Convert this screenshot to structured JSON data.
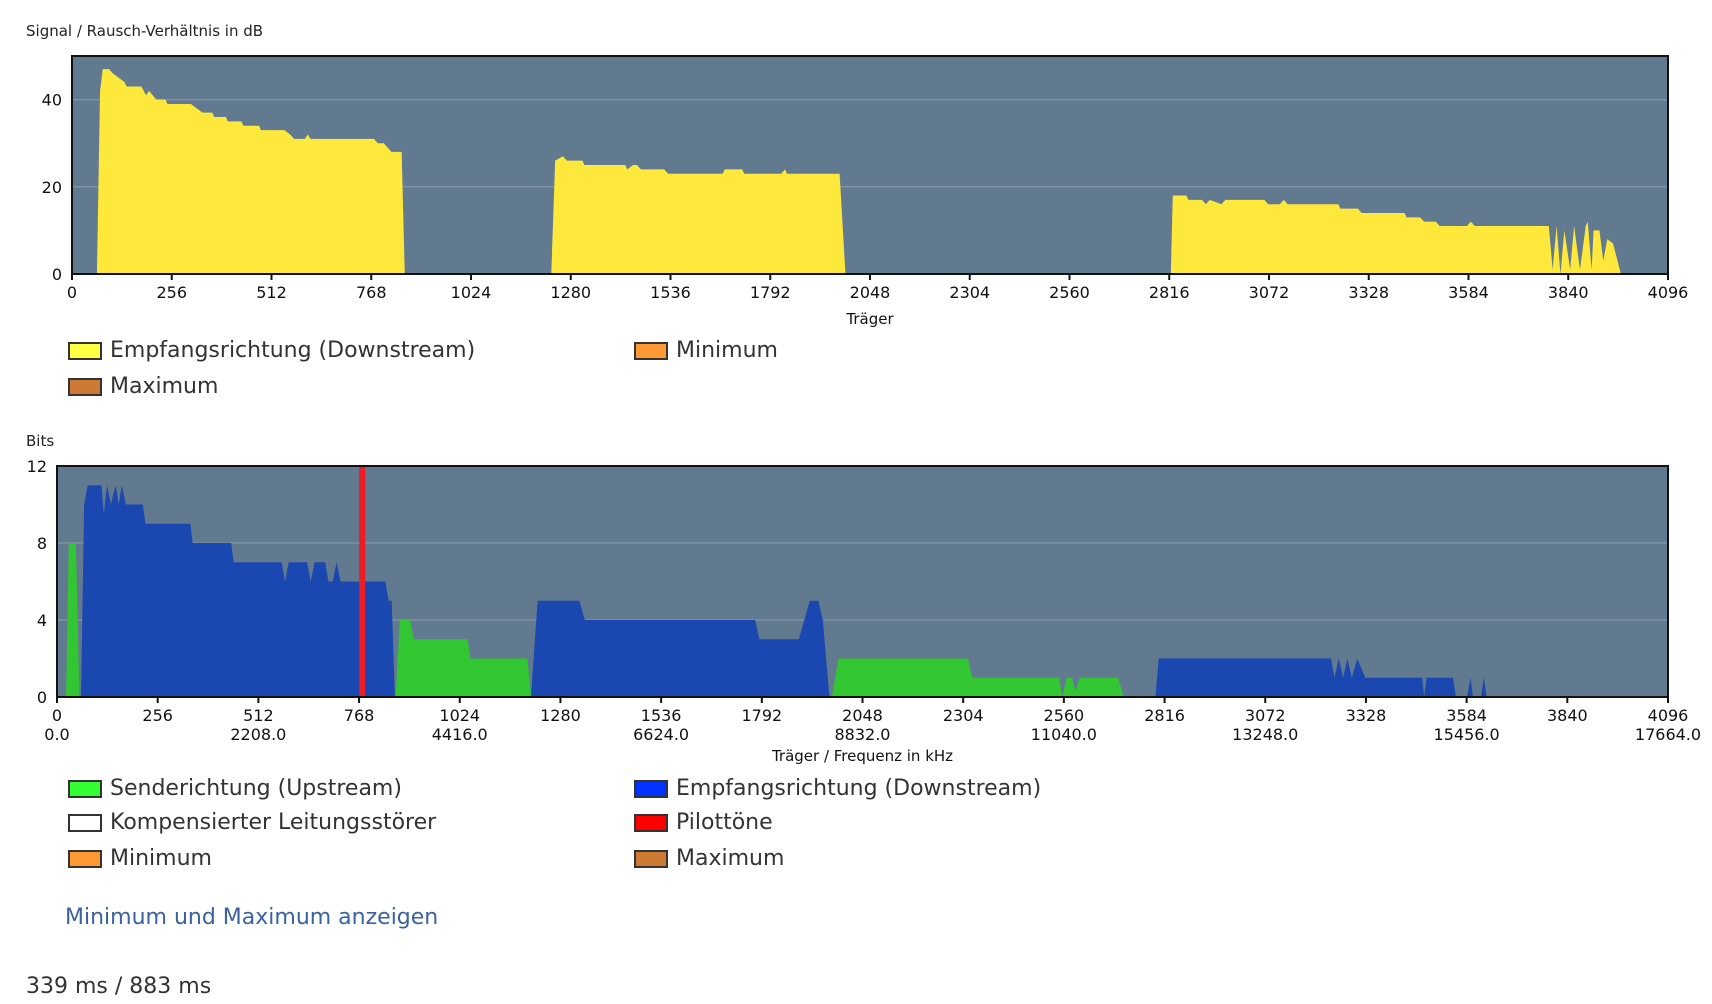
{
  "chart_data": [
    {
      "type": "area",
      "title": "Signal / Rausch-Verhältnis in dB",
      "ylabel": "Signal / Rausch-Verhältnis in dB",
      "xlabel": "Träger",
      "xlim": [
        0,
        4096
      ],
      "ylim": [
        0,
        50
      ],
      "xticks": [
        "0",
        "256",
        "512",
        "768",
        "1024",
        "1280",
        "1536",
        "1792",
        "2048",
        "2304",
        "2560",
        "2816",
        "3072",
        "3328",
        "3584",
        "3840",
        "4096"
      ],
      "yticks": [
        0,
        20,
        40
      ],
      "grid": true,
      "series": [
        {
          "name": "Empfangsrichtung (Downstream)",
          "color": "#ffe83c",
          "segments": [
            [
              [
                64,
                0
              ],
              [
                72,
                42
              ],
              [
                79,
                47
              ],
              [
                95,
                47
              ],
              [
                105,
                46
              ],
              [
                120,
                45
              ],
              [
                135,
                44
              ],
              [
                140,
                43
              ],
              [
                178,
                43
              ],
              [
                190,
                41
              ],
              [
                198,
                42
              ],
              [
                216,
                40
              ],
              [
                240,
                40
              ],
              [
                245,
                39
              ],
              [
                305,
                39
              ],
              [
                320,
                38
              ],
              [
                335,
                37
              ],
              [
                360,
                37
              ],
              [
                365,
                36
              ],
              [
                395,
                36
              ],
              [
                400,
                35
              ],
              [
                435,
                35
              ],
              [
                440,
                34
              ],
              [
                480,
                34
              ],
              [
                485,
                33
              ],
              [
                545,
                33
              ],
              [
                560,
                32
              ],
              [
                570,
                31
              ],
              [
                598,
                31
              ],
              [
                605,
                32
              ],
              [
                612,
                31
              ],
              [
                775,
                31
              ],
              [
                785,
                30
              ],
              [
                800,
                30
              ],
              [
                810,
                29
              ],
              [
                820,
                28
              ],
              [
                846,
                28
              ],
              [
                854,
                0
              ]
            ],
            [
              [
                1230,
                0
              ],
              [
                1240,
                26
              ],
              [
                1260,
                27
              ],
              [
                1270,
                26
              ],
              [
                1310,
                26
              ],
              [
                1315,
                25
              ],
              [
                1420,
                25
              ],
              [
                1425,
                24
              ],
              [
                1440,
                25
              ],
              [
                1450,
                25
              ],
              [
                1460,
                24
              ],
              [
                1520,
                24
              ],
              [
                1530,
                23
              ],
              [
                1670,
                23
              ],
              [
                1675,
                24
              ],
              [
                1720,
                24
              ],
              [
                1725,
                23
              ],
              [
                1820,
                23
              ],
              [
                1830,
                24
              ],
              [
                1835,
                23
              ],
              [
                1970,
                23
              ],
              [
                1985,
                0
              ]
            ],
            [
              [
                2820,
                0
              ],
              [
                2825,
                18
              ],
              [
                2860,
                18
              ],
              [
                2865,
                17
              ],
              [
                2900,
                17
              ],
              [
                2910,
                16
              ],
              [
                2920,
                17
              ],
              [
                2950,
                16
              ],
              [
                2960,
                17
              ],
              [
                3060,
                17
              ],
              [
                3070,
                16
              ],
              [
                3100,
                16
              ],
              [
                3110,
                17
              ],
              [
                3120,
                16
              ],
              [
                3250,
                16
              ],
              [
                3255,
                15
              ],
              [
                3300,
                15
              ],
              [
                3310,
                14
              ],
              [
                3420,
                14
              ],
              [
                3425,
                13
              ],
              [
                3460,
                13
              ],
              [
                3470,
                12
              ],
              [
                3500,
                12
              ],
              [
                3510,
                11
              ],
              [
                3580,
                11
              ],
              [
                3590,
                12
              ],
              [
                3600,
                11
              ],
              [
                3790,
                11
              ],
              [
                3800,
                1
              ],
              [
                3810,
                11
              ],
              [
                3820,
                0
              ],
              [
                3830,
                10
              ],
              [
                3845,
                1
              ],
              [
                3855,
                11
              ],
              [
                3870,
                1
              ],
              [
                3885,
                11
              ],
              [
                3890,
                12
              ],
              [
                3900,
                1
              ],
              [
                3905,
                10
              ],
              [
                3920,
                10
              ],
              [
                3930,
                3
              ],
              [
                3940,
                8
              ],
              [
                3955,
                7
              ],
              [
                3975,
                0
              ]
            ]
          ]
        }
      ],
      "legend": [
        {
          "label": "Empfangsrichtung (Downstream)",
          "color": "#ffff44"
        },
        {
          "label": "Minimum",
          "color": "#ff9933"
        },
        {
          "label": "Maximum",
          "color": "#cc7a33"
        }
      ]
    },
    {
      "type": "area",
      "ylabel": "Bits",
      "xlabel": "Träger / Frequenz in kHz",
      "xlim": [
        0,
        4096
      ],
      "ylim": [
        0,
        12
      ],
      "xticks": [
        "0",
        "256",
        "512",
        "768",
        "1024",
        "1280",
        "1536",
        "1792",
        "2048",
        "2304",
        "2560",
        "2816",
        "3072",
        "3328",
        "3584",
        "3840",
        "4096"
      ],
      "xticks2": [
        "0.0",
        "2208.0",
        "4416.0",
        "6624.0",
        "8832.0",
        "11040.0",
        "13248.0",
        "15456.0",
        "17664.0"
      ],
      "yticks": [
        0,
        4,
        8,
        12
      ],
      "grid": true,
      "series": [
        {
          "name": "Senderichtung (Upstream)",
          "color": "#33c633",
          "segments": [
            [
              [
                23,
                0
              ],
              [
                30,
                8
              ],
              [
                48,
                8
              ],
              [
                57,
                0
              ]
            ],
            [
              [
                861,
                0
              ],
              [
                872,
                4
              ],
              [
                898,
                4
              ],
              [
                907,
                3
              ],
              [
                1044,
                3
              ],
              [
                1051,
                2
              ],
              [
                1196,
                2
              ],
              [
                1206,
                0
              ]
            ],
            [
              [
                1970,
                0
              ],
              [
                1987,
                2
              ],
              [
                2316,
                2
              ],
              [
                2327,
                1
              ],
              [
                2548,
                1
              ],
              [
                2556,
                0
              ],
              [
                2567,
                1
              ],
              [
                2580,
                1
              ],
              [
                2590,
                0.3
              ],
              [
                2600,
                1
              ],
              [
                2698,
                1
              ],
              [
                2712,
                0
              ]
            ]
          ]
        },
        {
          "name": "Empfangsrichtung (Downstream)",
          "color": "#1a47b0",
          "segments": [
            [
              [
                61,
                0
              ],
              [
                69,
                10
              ],
              [
                78,
                11
              ],
              [
                113,
                11
              ],
              [
                119,
                9.5
              ],
              [
                127,
                11
              ],
              [
                137,
                10
              ],
              [
                149,
                11
              ],
              [
                157,
                10
              ],
              [
                165,
                11
              ],
              [
                175,
                10
              ],
              [
                218,
                10
              ],
              [
                225,
                9
              ],
              [
                339,
                9
              ],
              [
                345,
                8
              ],
              [
                443,
                8
              ],
              [
                449,
                7
              ],
              [
                571,
                7
              ],
              [
                580,
                6
              ],
              [
                589,
                7
              ],
              [
                636,
                7
              ],
              [
                645,
                6
              ],
              [
                655,
                7
              ],
              [
                682,
                7
              ],
              [
                690,
                6
              ],
              [
                701,
                6
              ],
              [
                711,
                7
              ],
              [
                721,
                6
              ],
              [
                835,
                6
              ],
              [
                843,
                5
              ],
              [
                851,
                5
              ],
              [
                859,
                0
              ]
            ],
            [
              [
                1205,
                0
              ],
              [
                1222,
                5
              ],
              [
                1328,
                5
              ],
              [
                1342,
                4
              ],
              [
                1775,
                4
              ],
              [
                1786,
                3
              ],
              [
                1886,
                3
              ],
              [
                1900,
                4
              ],
              [
                1914,
                5
              ],
              [
                1936,
                5
              ],
              [
                1947,
                4
              ],
              [
                1964,
                0
              ]
            ],
            [
              [
                2793,
                0
              ],
              [
                2801,
                2
              ],
              [
                3239,
                2
              ],
              [
                3248,
                1
              ],
              [
                3259,
                2
              ],
              [
                3270,
                1
              ],
              [
                3281,
                2
              ],
              [
                3292,
                1
              ],
              [
                3306,
                2
              ],
              [
                3326,
                1
              ],
              [
                3471,
                1
              ],
              [
                3476,
                0
              ],
              [
                3482,
                1
              ],
              [
                3549,
                1
              ],
              [
                3557,
                0
              ],
              [
                3585,
                0
              ],
              [
                3594,
                1
              ],
              [
                3600,
                0
              ],
              [
                3620,
                0
              ],
              [
                3628,
                1
              ],
              [
                3635,
                0
              ]
            ]
          ]
        }
      ],
      "pilot_tones": {
        "name": "Pilottöne",
        "color": "#ee1c25",
        "carriers": [
          776
        ]
      },
      "legend": [
        {
          "label": "Senderichtung (Upstream)",
          "color": "#33ff33"
        },
        {
          "label": "Empfangsrichtung (Downstream)",
          "color": "#0033ff"
        },
        {
          "label": "Kompensierter Leitungsstörer",
          "color": "#ffffff"
        },
        {
          "label": "Pilottöne",
          "color": "#ff0000"
        },
        {
          "label": "Minimum",
          "color": "#ff9933"
        },
        {
          "label": "Maximum",
          "color": "#cc7a33"
        }
      ]
    }
  ],
  "link": "Minimum und Maximum anzeigen",
  "timing": "339 ms / 883 ms"
}
